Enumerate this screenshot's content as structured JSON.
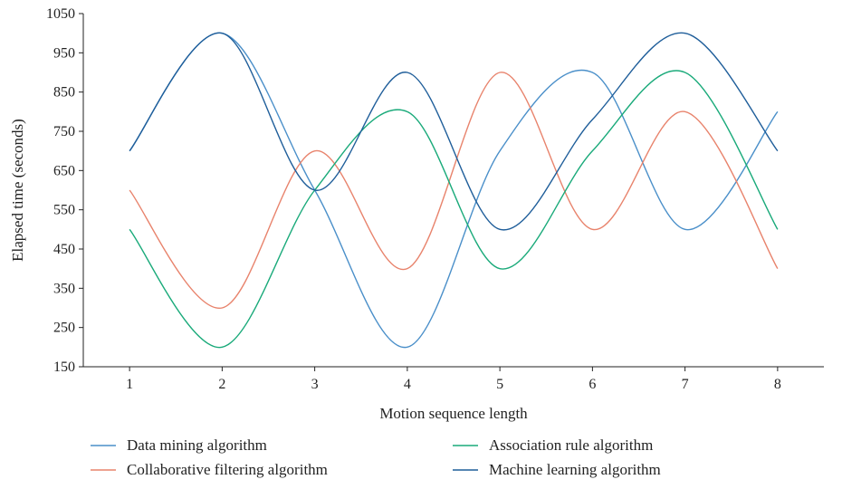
{
  "chart_data": {
    "type": "line",
    "title": "",
    "xlabel": "Motion sequence length",
    "ylabel": "Elapsed time (seconds)",
    "x": [
      1,
      2,
      3,
      4,
      5,
      6,
      7,
      8
    ],
    "xlim": [
      0.5,
      8.5
    ],
    "ylim": [
      150,
      1050
    ],
    "yticks": [
      150,
      250,
      350,
      450,
      550,
      650,
      750,
      850,
      950,
      1050
    ],
    "grid": false,
    "legend_position": "bottom",
    "series": [
      {
        "name": "Data mining algorithm",
        "color": "#4a8fc9",
        "values": [
          700,
          1000,
          600,
          200,
          700,
          900,
          500,
          800
        ]
      },
      {
        "name": "Collaborative filtering algorithm",
        "color": "#e8836c",
        "values": [
          600,
          300,
          700,
          400,
          900,
          500,
          800,
          400
        ]
      },
      {
        "name": "Association rule algorithm",
        "color": "#1aaa7a",
        "values": [
          500,
          200,
          600,
          800,
          400,
          700,
          900,
          500
        ]
      },
      {
        "name": "Machine learning algorithm",
        "color": "#1f5e9a",
        "values": [
          700,
          1000,
          600,
          900,
          500,
          780,
          1000,
          700
        ]
      }
    ]
  }
}
